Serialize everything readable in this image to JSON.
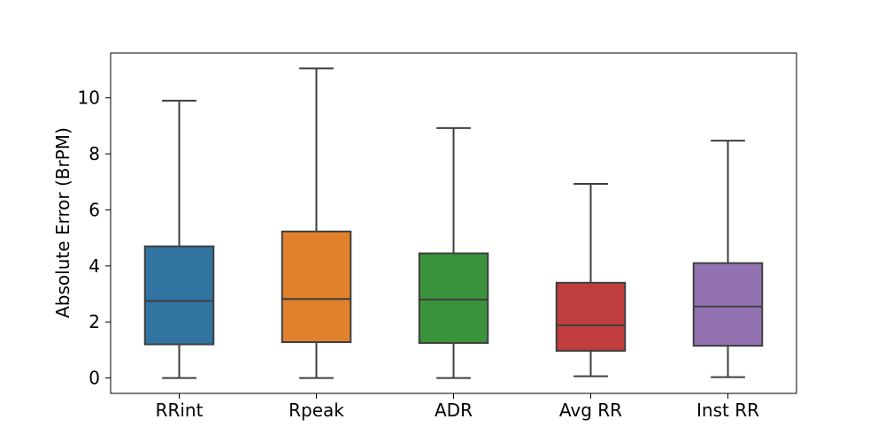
{
  "chart_data": {
    "type": "box",
    "title": "",
    "xlabel": "",
    "ylabel": "Absolute Error (BrPM)",
    "ylim": [
      -0.55,
      11.6
    ],
    "yticks": [
      0,
      2,
      4,
      6,
      8,
      10
    ],
    "grid": false,
    "categories": [
      "RRint",
      "Rpeak",
      "ADR",
      "Avg RR",
      "Inst RR"
    ],
    "boxes": [
      {
        "category": "RRint",
        "whisker_low": 0.0,
        "q1": 1.2,
        "median": 2.75,
        "q3": 4.7,
        "whisker_high": 9.9,
        "color": "#3274a1"
      },
      {
        "category": "Rpeak",
        "whisker_low": 0.0,
        "q1": 1.28,
        "median": 2.82,
        "q3": 5.23,
        "whisker_high": 11.05,
        "color": "#e1812c"
      },
      {
        "category": "ADR",
        "whisker_low": 0.0,
        "q1": 1.25,
        "median": 2.8,
        "q3": 4.45,
        "whisker_high": 8.92,
        "color": "#3a923a"
      },
      {
        "category": "Avg RR",
        "whisker_low": 0.06,
        "q1": 0.97,
        "median": 1.88,
        "q3": 3.4,
        "whisker_high": 6.93,
        "color": "#c03d3e"
      },
      {
        "category": "Inst RR",
        "whisker_low": 0.03,
        "q1": 1.15,
        "median": 2.55,
        "q3": 4.1,
        "whisker_high": 8.47,
        "color": "#9372b2"
      }
    ]
  }
}
